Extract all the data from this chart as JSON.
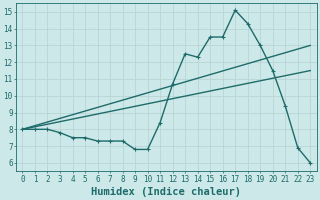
{
  "title": "",
  "xlabel": "Humidex (Indice chaleur)",
  "xlim": [
    -0.5,
    23.5
  ],
  "ylim": [
    5.5,
    15.5
  ],
  "xticks": [
    0,
    1,
    2,
    3,
    4,
    5,
    6,
    7,
    8,
    9,
    10,
    11,
    12,
    13,
    14,
    15,
    16,
    17,
    18,
    19,
    20,
    21,
    22,
    23
  ],
  "yticks": [
    6,
    7,
    8,
    9,
    10,
    11,
    12,
    13,
    14,
    15
  ],
  "bg_color": "#cde8e8",
  "line_color": "#1e6b6b",
  "grid_color": "#b8d4d4",
  "series_main": {
    "x": [
      0,
      1,
      2,
      3,
      4,
      5,
      6,
      7,
      8,
      9,
      10,
      11,
      12,
      13,
      14,
      15,
      16,
      17,
      18,
      19,
      20,
      21,
      22,
      23
    ],
    "y": [
      8.0,
      8.0,
      8.0,
      7.8,
      7.5,
      7.5,
      7.3,
      7.3,
      7.3,
      6.8,
      6.8,
      8.4,
      10.7,
      12.5,
      12.3,
      13.5,
      13.5,
      15.1,
      14.3,
      13.0,
      11.5,
      9.4,
      6.9,
      6.0
    ]
  },
  "series_line1": {
    "x": [
      0,
      23
    ],
    "y": [
      8.0,
      13.0
    ]
  },
  "series_line2": {
    "x": [
      0,
      23
    ],
    "y": [
      8.0,
      11.5
    ]
  },
  "tick_fontsize": 5.5,
  "label_fontsize": 7.5,
  "linewidth": 1.0,
  "markersize": 2.5
}
